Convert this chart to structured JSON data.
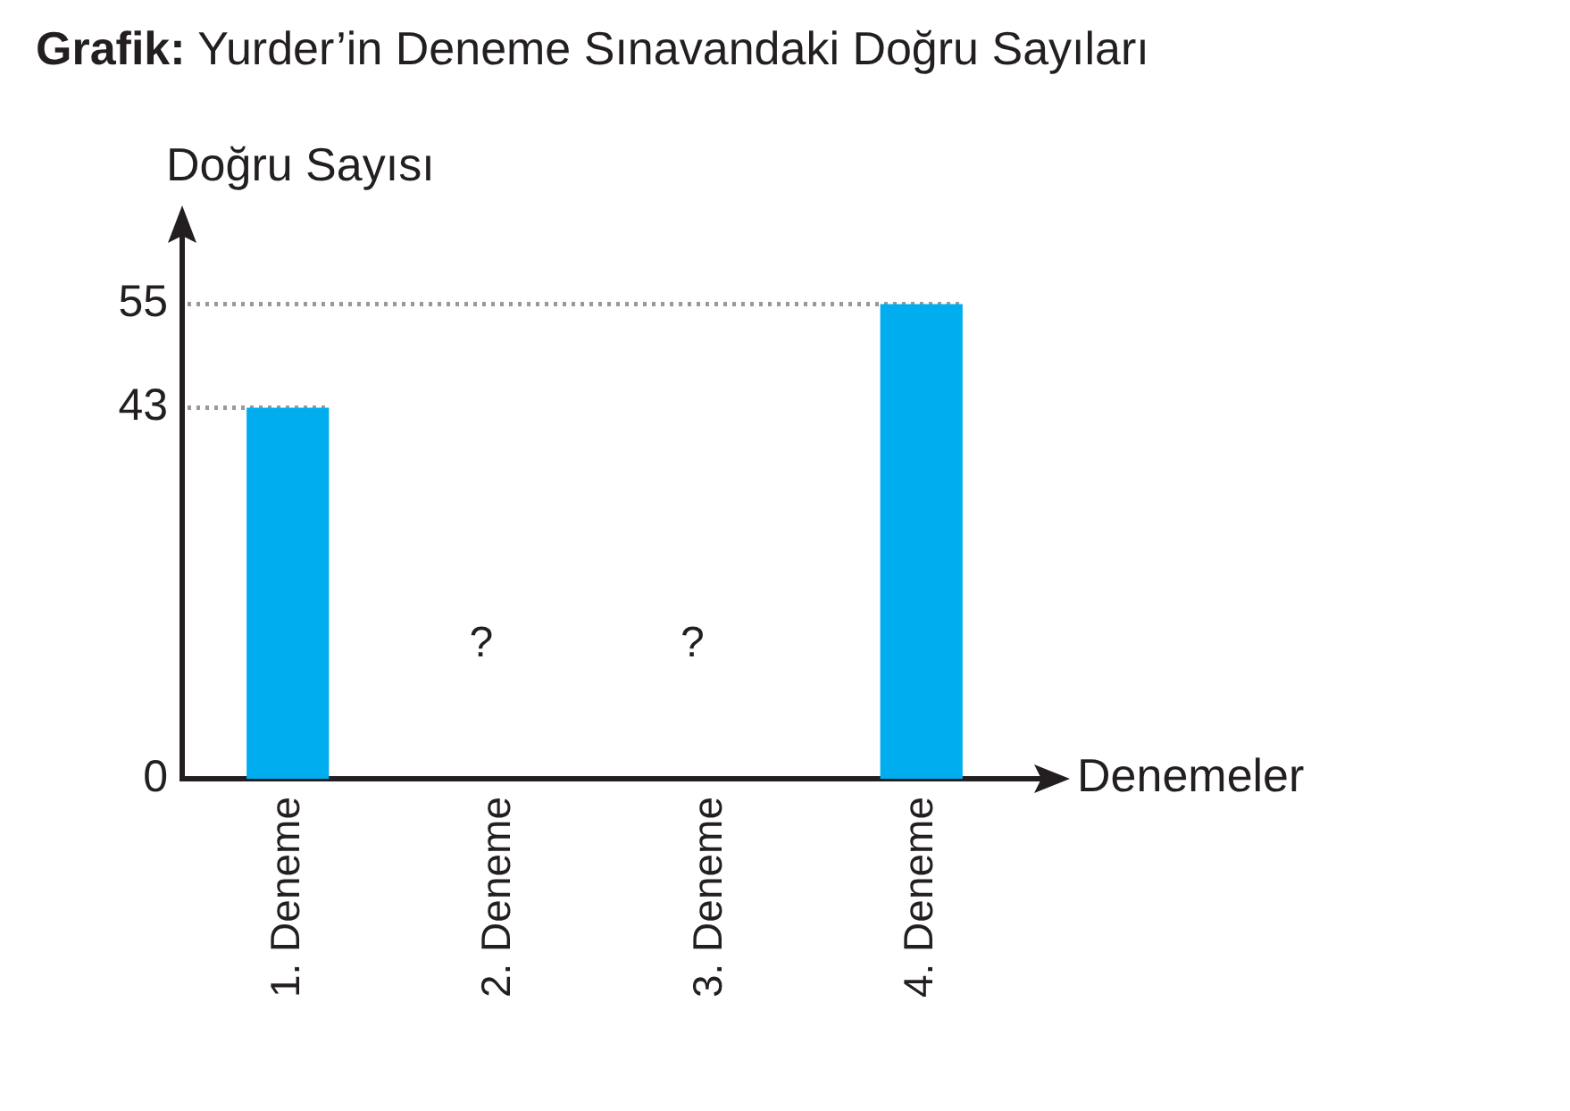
{
  "chart_data": {
    "type": "bar",
    "title": "Grafik: Yurder’in Deneme Sınavandaki Doğru Sayıları",
    "xlabel": "Denemeler",
    "ylabel": "Doğru Sayısı",
    "categories": [
      "1. Deneme",
      "2. Deneme",
      "3. Deneme",
      "4. Deneme"
    ],
    "values": [
      43,
      null,
      null,
      55
    ],
    "color": "#00aeef",
    "ylim": [
      0,
      65
    ],
    "yticks": [
      0,
      43,
      55
    ],
    "grid": false,
    "ref_lines": [
      {
        "axis": "y",
        "value": 43,
        "color": "#999999",
        "line_style": "dotted"
      },
      {
        "axis": "y",
        "value": 55,
        "color": "#999999",
        "line_style": "dotted"
      }
    ],
    "annotations": [
      "?",
      "?"
    ]
  }
}
